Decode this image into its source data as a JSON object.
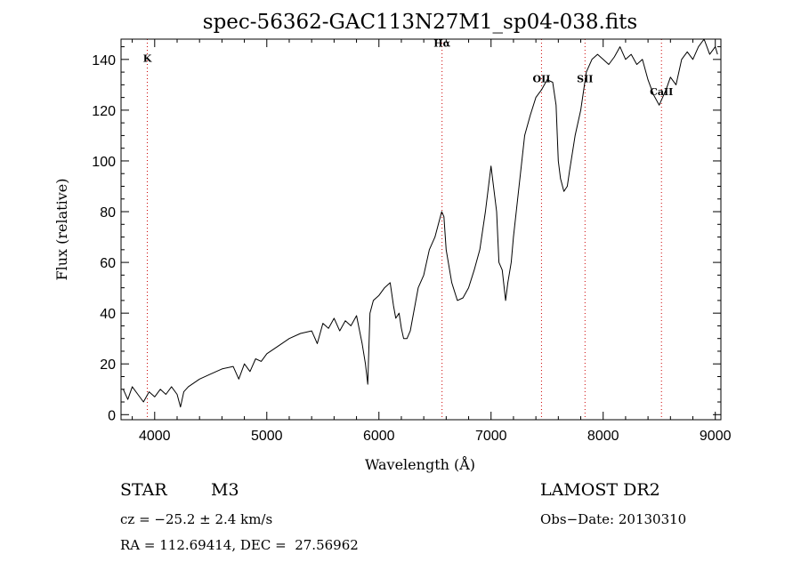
{
  "chart_data": {
    "type": "line",
    "title": "spec-56362-GAC113N27M1_sp04-038.fits",
    "xlabel": "Wavelength (Å)",
    "ylabel": "Flux (relative)",
    "xlim": [
      3700,
      9050
    ],
    "ylim": [
      -2,
      148
    ],
    "xticks": [
      4000,
      5000,
      6000,
      7000,
      8000,
      9000
    ],
    "yticks": [
      0,
      20,
      40,
      60,
      80,
      100,
      120,
      140
    ],
    "grid": false,
    "series_color": "#000000",
    "line_marker_color": "#cc0000",
    "spectral_lines": [
      {
        "label": "K",
        "x": 3934,
        "label_y": 139
      },
      {
        "label": "Hα",
        "x": 6563,
        "label_y": 145
      },
      {
        "label": "OII",
        "x": 7450,
        "label_y": 131
      },
      {
        "label": "SII",
        "x": 7838,
        "label_y": 131
      },
      {
        "label": "CaII",
        "x": 8520,
        "label_y": 126
      }
    ],
    "x": [
      3720,
      3760,
      3800,
      3850,
      3900,
      3950,
      4000,
      4050,
      4100,
      4150,
      4200,
      4230,
      4260,
      4300,
      4400,
      4500,
      4600,
      4700,
      4750,
      4800,
      4850,
      4900,
      4950,
      5000,
      5100,
      5200,
      5300,
      5400,
      5450,
      5500,
      5550,
      5600,
      5650,
      5700,
      5750,
      5800,
      5850,
      5880,
      5900,
      5920,
      5950,
      6000,
      6050,
      6100,
      6130,
      6150,
      6180,
      6200,
      6220,
      6250,
      6280,
      6300,
      6350,
      6400,
      6450,
      6500,
      6530,
      6560,
      6580,
      6600,
      6650,
      6700,
      6750,
      6800,
      6850,
      6900,
      6950,
      7000,
      7050,
      7070,
      7100,
      7130,
      7150,
      7180,
      7200,
      7250,
      7300,
      7350,
      7400,
      7450,
      7500,
      7550,
      7580,
      7600,
      7620,
      7650,
      7680,
      7700,
      7750,
      7800,
      7850,
      7900,
      7950,
      8000,
      8050,
      8100,
      8150,
      8200,
      8250,
      8300,
      8350,
      8400,
      8450,
      8500,
      8530,
      8560,
      8600,
      8650,
      8700,
      8750,
      8800,
      8850,
      8900,
      8950,
      9000,
      9020
    ],
    "y": [
      10,
      6,
      11,
      8,
      5,
      9,
      7,
      10,
      8,
      11,
      8,
      3,
      9,
      11,
      14,
      16,
      18,
      19,
      14,
      20,
      17,
      22,
      21,
      24,
      27,
      30,
      32,
      33,
      28,
      36,
      34,
      38,
      33,
      37,
      35,
      39,
      28,
      20,
      12,
      40,
      45,
      47,
      50,
      52,
      43,
      38,
      40,
      34,
      30,
      30,
      33,
      38,
      50,
      55,
      65,
      70,
      75,
      80,
      78,
      65,
      52,
      45,
      46,
      50,
      57,
      65,
      80,
      98,
      80,
      60,
      57,
      45,
      52,
      60,
      70,
      90,
      110,
      118,
      125,
      128,
      132,
      131,
      122,
      100,
      93,
      88,
      90,
      96,
      110,
      120,
      135,
      140,
      142,
      140,
      138,
      141,
      145,
      140,
      142,
      138,
      140,
      132,
      126,
      122,
      125,
      128,
      133,
      130,
      140,
      143,
      140,
      145,
      148,
      142,
      145,
      142
    ]
  },
  "info": {
    "object_type": "STAR",
    "subclass": "M3",
    "survey": "LAMOST DR2",
    "cz": "cz = −25.2 ± 2.4 km/s",
    "obs_date": "Obs−Date: 20130310",
    "coords": "RA = 112.69414, DEC =  27.56962"
  }
}
